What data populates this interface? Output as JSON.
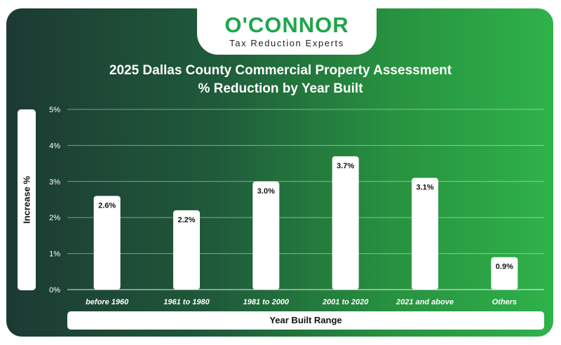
{
  "logo": {
    "brand": "O'CONNOR",
    "tagline": "Tax Reduction Experts"
  },
  "chart_data": {
    "type": "bar",
    "title": "2025 Dallas County Commercial Property Assessment\n% Reduction by Year Built",
    "title_lines": [
      "2025 Dallas County Commercial Property Assessment",
      "% Reduction by Year Built"
    ],
    "xlabel": "Year Built Range",
    "ylabel": "Increase %",
    "categories": [
      "before 1960",
      "1961 to 1980",
      "1981 to 2000",
      "2001 to 2020",
      "2021 and above",
      "Others"
    ],
    "values": [
      2.6,
      2.2,
      3.0,
      3.7,
      3.1,
      0.9
    ],
    "data_labels": [
      "2.6%",
      "2.2%",
      "3.0%",
      "3.7%",
      "3.1%",
      "0.9%"
    ],
    "yticks": [
      0,
      1,
      2,
      3,
      4,
      5
    ],
    "ytick_labels": [
      "0%",
      "1%",
      "2%",
      "3%",
      "4%",
      "5%"
    ],
    "ylim": [
      0,
      5
    ],
    "grid": true,
    "legend": "none",
    "colors": {
      "bar": "#ffffff",
      "text": "#ffffff",
      "label": "#111111",
      "gridline": "#ffffff"
    }
  }
}
